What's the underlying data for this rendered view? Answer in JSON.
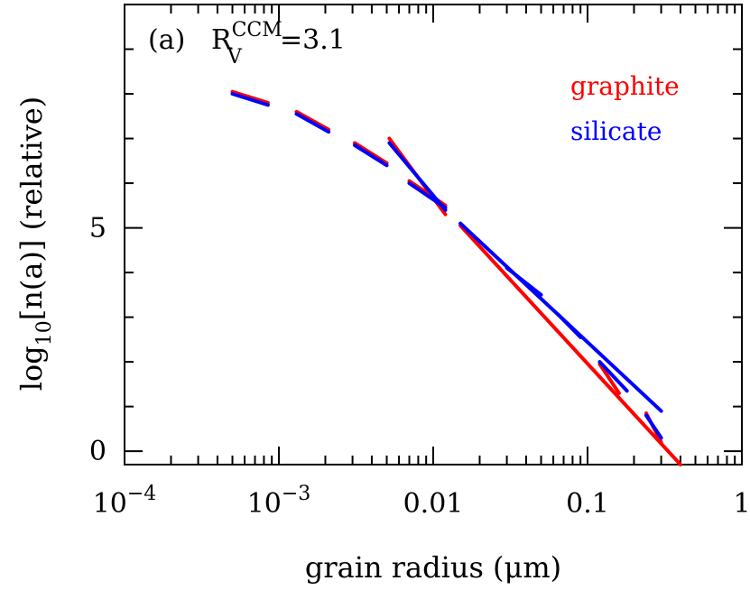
{
  "chart_data": {
    "type": "line",
    "panel_label": "(a)",
    "annotation": {
      "var": "R",
      "sup": "CCM",
      "sub": "V",
      "value": "=3.1"
    },
    "xlabel": "grain radius (μm)",
    "ylabel_parts": {
      "main": "log",
      "sub": "10",
      "rest": "[n(a)] (relative)"
    },
    "xscale": "log",
    "xlim": [
      0.0001,
      1
    ],
    "ylim": [
      -0.3,
      10
    ],
    "x_ticks": [
      {
        "value": 0.0001,
        "base": "10",
        "exp": "−4"
      },
      {
        "value": 0.001,
        "base": "10",
        "exp": "−3"
      },
      {
        "value": 0.01,
        "base": "0.01",
        "exp": ""
      },
      {
        "value": 0.1,
        "base": "0.1",
        "exp": ""
      },
      {
        "value": 1,
        "base": "1",
        "exp": ""
      }
    ],
    "y_ticks": [
      {
        "value": 0,
        "label": "0"
      },
      {
        "value": 5,
        "label": "5"
      }
    ],
    "legend_position": "top-right",
    "series": [
      {
        "name": "graphite",
        "color": "#ff0000",
        "segments": [
          [
            [
              0.0005,
              8.05
            ],
            [
              0.00085,
              7.8
            ]
          ],
          [
            [
              0.0013,
              7.6
            ],
            [
              0.0021,
              7.2
            ]
          ],
          [
            [
              0.0031,
              6.9
            ],
            [
              0.005,
              6.45
            ]
          ],
          [
            [
              0.0052,
              7.0
            ],
            [
              0.012,
              5.3
            ]
          ],
          [
            [
              0.007,
              6.05
            ],
            [
              0.012,
              5.5
            ]
          ],
          [
            [
              0.015,
              5.05
            ],
            [
              0.4,
              -0.3
            ]
          ],
          [
            [
              0.12,
              1.95
            ],
            [
              0.16,
              1.3
            ]
          ],
          [
            [
              0.24,
              0.85
            ],
            [
              0.3,
              0.2
            ]
          ]
        ]
      },
      {
        "name": "silicate",
        "color": "#0000ff",
        "segments": [
          [
            [
              0.0005,
              8.0
            ],
            [
              0.00085,
              7.75
            ]
          ],
          [
            [
              0.0013,
              7.55
            ],
            [
              0.0021,
              7.15
            ]
          ],
          [
            [
              0.0031,
              6.85
            ],
            [
              0.005,
              6.4
            ]
          ],
          [
            [
              0.0052,
              6.9
            ],
            [
              0.012,
              5.4
            ]
          ],
          [
            [
              0.007,
              6.0
            ],
            [
              0.012,
              5.45
            ]
          ],
          [
            [
              0.015,
              5.1
            ],
            [
              0.3,
              0.9
            ]
          ],
          [
            [
              0.03,
              4.1
            ],
            [
              0.05,
              3.5
            ]
          ],
          [
            [
              0.065,
              3.05
            ],
            [
              0.09,
              2.55
            ]
          ],
          [
            [
              0.12,
              2.0
            ],
            [
              0.18,
              1.35
            ]
          ],
          [
            [
              0.24,
              0.8
            ],
            [
              0.3,
              0.3
            ]
          ]
        ]
      }
    ]
  }
}
